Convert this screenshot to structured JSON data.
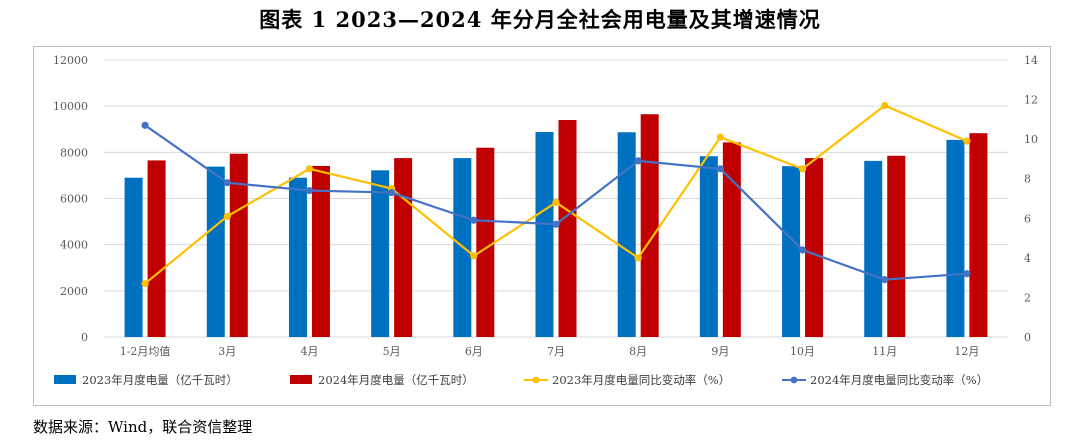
{
  "title": "图表 1 2023—2024 年分月全社会用电量及其增速情况",
  "source": "数据来源：Wind，联合资信整理",
  "chart_data": {
    "type": "bar+line",
    "categories": [
      "1-2月均值",
      "3月",
      "4月",
      "5月",
      "6月",
      "7月",
      "8月",
      "9月",
      "10月",
      "11月",
      "12月"
    ],
    "series": [
      {
        "name": "2023年月度电量（亿千瓦时）",
        "kind": "bar",
        "axis": "left",
        "color": "#0070C0",
        "values": [
          6900,
          7380,
          6900,
          7220,
          7750,
          8880,
          8870,
          7830,
          7400,
          7630,
          8540
        ]
      },
      {
        "name": "2024年月度电量（亿千瓦时）",
        "kind": "bar",
        "axis": "left",
        "color": "#C00000",
        "values": [
          7650,
          7940,
          7410,
          7750,
          8200,
          9400,
          9650,
          8430,
          7750,
          7850,
          8830
        ]
      },
      {
        "name": "2023年月度电量同比变动率（%）",
        "kind": "line",
        "axis": "right",
        "color": "#FFC000",
        "values": [
          2.7,
          6.1,
          8.5,
          7.5,
          4.1,
          6.8,
          4.0,
          10.1,
          8.5,
          11.7,
          9.9
        ]
      },
      {
        "name": "2024年月度电量同比变动率（%）",
        "kind": "line",
        "axis": "right",
        "color": "#4472C4",
        "values": [
          10.7,
          7.8,
          7.4,
          7.3,
          5.9,
          5.7,
          8.9,
          8.5,
          4.4,
          2.9,
          3.2
        ]
      }
    ],
    "y_left": {
      "min": 0,
      "max": 12000,
      "step": 2000,
      "ticks": [
        "0",
        "2000",
        "4000",
        "6000",
        "8000",
        "10000",
        "12000"
      ]
    },
    "y_right": {
      "min": 0,
      "max": 14,
      "step": 2,
      "ticks": [
        "0",
        "2",
        "4",
        "6",
        "8",
        "10",
        "12",
        "14"
      ]
    },
    "grid": true,
    "legend_position": "bottom"
  }
}
